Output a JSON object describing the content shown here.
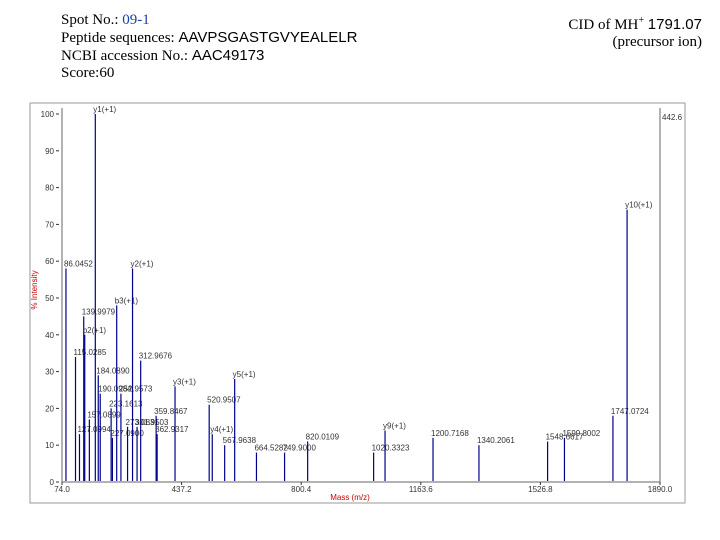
{
  "header": {
    "spot_label": "Spot No.:",
    "spot": "09-1",
    "peptide_label": "Peptide sequences:",
    "peptide": "AAVPSGASTGVYEALELR",
    "accession_label": "NCBI accession No.:",
    "accession": "AAC49173",
    "score": "Score:60",
    "cid_label": "CID of MH",
    "cid_charge": "+",
    "cid_mass": "1791.07",
    "precursor": "(precursor ion)"
  },
  "chart_data": {
    "type": "spectrum",
    "x_label": "Mass (m/z)",
    "y_label": "% Intensity",
    "max_intensity": "442.6",
    "color": "#00008b",
    "xlim": [
      74,
      1890
    ],
    "xticks": [
      {
        "value": 74,
        "label": "74.0"
      },
      437.2,
      800.4,
      1163.6,
      1526.8,
      {
        "value": 1890,
        "label": "1890.0"
      }
    ],
    "ylim": [
      0,
      100
    ],
    "yticks": [
      0,
      10,
      20,
      30,
      40,
      50,
      60,
      70,
      80,
      90,
      100
    ],
    "x": [
      86.0452,
      115.0285,
      127.0994,
      139.9979,
      143.08,
      157.0899,
      175.12,
      184.089,
      190.0984,
      223.1613,
      227.09,
      240.13,
      252.9573,
      273.0831,
      288.2,
      301.9503,
      312.9676,
      359.8467,
      362.9317,
      417.24,
      520.9507,
      530.3,
      567.9638,
      598.4,
      664.5282,
      749.9,
      820.0109,
      1020.3323,
      1055,
      1200.7168,
      1340.2061,
      1548.6617,
      1599.8002,
      1747.0724,
      1790
    ],
    "values": [
      58,
      34,
      13,
      45,
      40,
      17,
      100,
      29,
      24,
      20,
      12,
      48,
      24,
      15,
      58,
      15,
      33,
      18,
      13,
      26,
      21,
      13,
      10,
      28,
      8,
      8,
      11,
      8,
      14,
      12,
      10,
      11,
      12,
      18,
      74
    ],
    "peak_labels": [
      "86.0452",
      "115.0285",
      "127.0994",
      "139.9979",
      "b2(+1)",
      "157.0899",
      "y1(+1)",
      "184.0890",
      "190.0984",
      "223.1613",
      "227.0900",
      "b3(+1)",
      "252.9573",
      "273.0831",
      "y2(+1)",
      "301.9503",
      "312.9676",
      "359.8467",
      "362.9317",
      "y3(+1)",
      "520.9507",
      "y4(+1)",
      "567.9638",
      "y5(+1)",
      "664.5282",
      "749.9000",
      "820.0109",
      "1020.3323",
      "y9(+1)",
      "1200.7168",
      "1340.2061",
      "1548.6617",
      "1599.8002",
      "1747.0724",
      "y10(+1)"
    ]
  }
}
